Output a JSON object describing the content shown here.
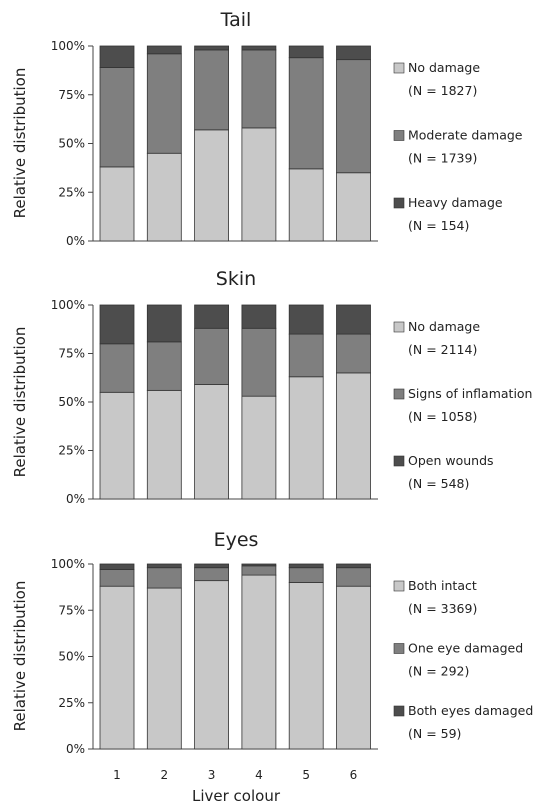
{
  "chart_data": [
    {
      "type": "bar",
      "stacked": true,
      "title": "Tail",
      "ylabel": "Relative distribution",
      "xlabel": "",
      "categories": [
        "1",
        "2",
        "3",
        "4",
        "5",
        "6"
      ],
      "yticks": [
        "0%",
        "25%",
        "50%",
        "75%",
        "100%"
      ],
      "ylim": [
        0,
        100
      ],
      "legend_position": "right",
      "series": [
        {
          "name": "No damage",
          "count_label": "(N = 1827)",
          "color": "#c8c8c8",
          "values": [
            38,
            45,
            57,
            58,
            37,
            35
          ]
        },
        {
          "name": "Moderate damage",
          "count_label": "(N = 1739)",
          "color": "#7f7f7f",
          "values": [
            51,
            51,
            41,
            40,
            57,
            58
          ]
        },
        {
          "name": "Heavy damage",
          "count_label": "(N = 154)",
          "color": "#4d4d4d",
          "values": [
            11,
            4,
            2,
            2,
            6,
            7
          ]
        }
      ]
    },
    {
      "type": "bar",
      "stacked": true,
      "title": "Skin",
      "ylabel": "Relative distribution",
      "xlabel": "",
      "categories": [
        "1",
        "2",
        "3",
        "4",
        "5",
        "6"
      ],
      "yticks": [
        "0%",
        "25%",
        "50%",
        "75%",
        "100%"
      ],
      "ylim": [
        0,
        100
      ],
      "legend_position": "right",
      "series": [
        {
          "name": "No damage",
          "count_label": "(N = 2114)",
          "color": "#c8c8c8",
          "values": [
            55,
            56,
            59,
            53,
            63,
            65
          ]
        },
        {
          "name": "Signs of inflamation",
          "count_label": "(N = 1058)",
          "color": "#7f7f7f",
          "values": [
            25,
            25,
            29,
            35,
            22,
            20
          ]
        },
        {
          "name": "Open wounds",
          "count_label": "(N = 548)",
          "color": "#4d4d4d",
          "values": [
            20,
            19,
            12,
            12,
            15,
            15
          ]
        }
      ]
    },
    {
      "type": "bar",
      "stacked": true,
      "title": "Eyes",
      "ylabel": "Relative distribution",
      "xlabel": "Liver colour",
      "categories": [
        "1",
        "2",
        "3",
        "4",
        "5",
        "6"
      ],
      "yticks": [
        "0%",
        "25%",
        "50%",
        "75%",
        "100%"
      ],
      "ylim": [
        0,
        100
      ],
      "legend_position": "right",
      "series": [
        {
          "name": "Both intact",
          "count_label": "(N = 3369)",
          "color": "#c8c8c8",
          "values": [
            88,
            87,
            91,
            94,
            90,
            88
          ]
        },
        {
          "name": "One eye damaged",
          "count_label": "(N = 292)",
          "color": "#7f7f7f",
          "values": [
            9,
            11,
            7,
            5,
            8,
            10
          ]
        },
        {
          "name": "Both eyes damaged",
          "count_label": "(N = 59)",
          "color": "#4d4d4d",
          "values": [
            3,
            2,
            2,
            1,
            2,
            2
          ]
        }
      ]
    }
  ]
}
